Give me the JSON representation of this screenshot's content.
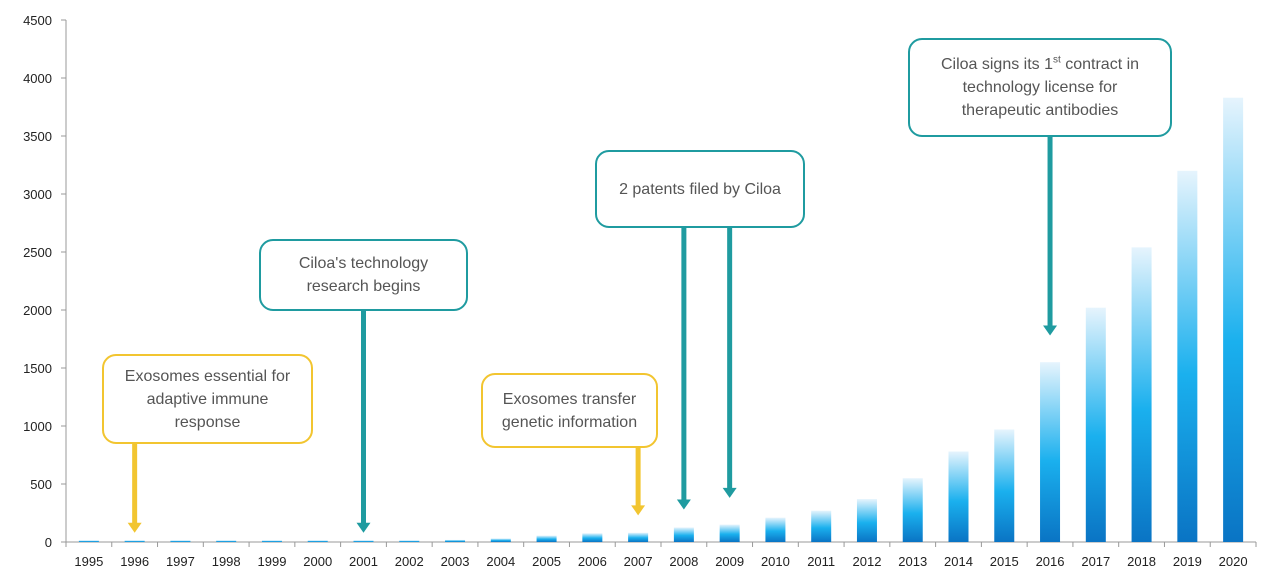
{
  "chart_data": {
    "type": "bar",
    "categories": [
      "1995",
      "1996",
      "1997",
      "1998",
      "1999",
      "2000",
      "2001",
      "2002",
      "2003",
      "2004",
      "2005",
      "2006",
      "2007",
      "2008",
      "2009",
      "2010",
      "2011",
      "2012",
      "2013",
      "2014",
      "2015",
      "2016",
      "2017",
      "2018",
      "2019",
      "2020"
    ],
    "values": [
      5,
      5,
      5,
      6,
      6,
      6,
      8,
      12,
      18,
      30,
      55,
      75,
      80,
      125,
      150,
      210,
      270,
      370,
      550,
      780,
      970,
      1550,
      2020,
      2540,
      3200,
      3830
    ],
    "ylim": [
      0,
      4500
    ],
    "yticks": [
      0,
      500,
      1000,
      1500,
      2000,
      2500,
      3000,
      3500,
      4000,
      4500
    ],
    "grid": false,
    "colors": {
      "bar_top": "#e6f4fd",
      "bar_mid": "#1ab0ee",
      "bar_bottom": "#0a74c4",
      "axis": "#999999",
      "teal": "#1f9ba0",
      "gold": "#f2c530"
    },
    "annotations": [
      {
        "id": "immune",
        "style": "gold",
        "lines": [
          "Exosomes essential for",
          "adaptive immune",
          "response"
        ],
        "arrows": [
          {
            "category": "1996",
            "value": 80
          }
        ]
      },
      {
        "id": "research",
        "style": "teal",
        "lines": [
          "Ciloa's technology",
          "research begins"
        ],
        "arrows": [
          {
            "category": "2001",
            "value": 80
          }
        ]
      },
      {
        "id": "transfer",
        "style": "gold",
        "lines": [
          "Exosomes transfer",
          "genetic information"
        ],
        "arrows": [
          {
            "category": "2007",
            "value": 230
          }
        ]
      },
      {
        "id": "patents",
        "style": "teal",
        "lines": [
          "2 patents filed by Ciloa"
        ],
        "arrows": [
          {
            "category": "2008",
            "value": 280
          },
          {
            "category": "2009",
            "value": 380
          }
        ]
      },
      {
        "id": "license",
        "style": "teal",
        "lines": [
          "Ciloa signs its 1",
          "st",
          " contract in",
          "technology license for",
          "therapeutic antibodies"
        ],
        "arrows": [
          {
            "category": "2016",
            "value": 1780
          }
        ]
      }
    ]
  }
}
